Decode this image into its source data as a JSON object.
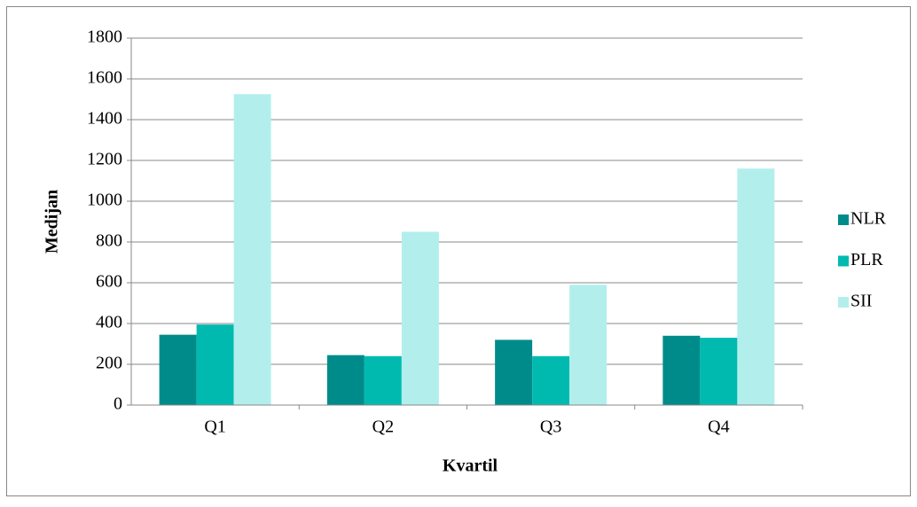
{
  "chart_data": {
    "type": "bar",
    "x_label": "Kvartil",
    "y_label": "Medijan",
    "categories": [
      "Q1",
      "Q2",
      "Q3",
      "Q4"
    ],
    "series": [
      {
        "name": "NLR",
        "color": "#008b8b",
        "values": [
          345,
          245,
          320,
          340
        ]
      },
      {
        "name": "PLR",
        "color": "#00bab0",
        "values": [
          395,
          240,
          240,
          330
        ]
      },
      {
        "name": "SII",
        "color": "#b2efec",
        "values": [
          1525,
          850,
          590,
          1160
        ]
      }
    ],
    "ylim": [
      0,
      1800
    ],
    "yticks": [
      0,
      200,
      400,
      600,
      800,
      1000,
      1200,
      1400,
      1600,
      1800
    ],
    "grid": true,
    "legend": "right"
  }
}
